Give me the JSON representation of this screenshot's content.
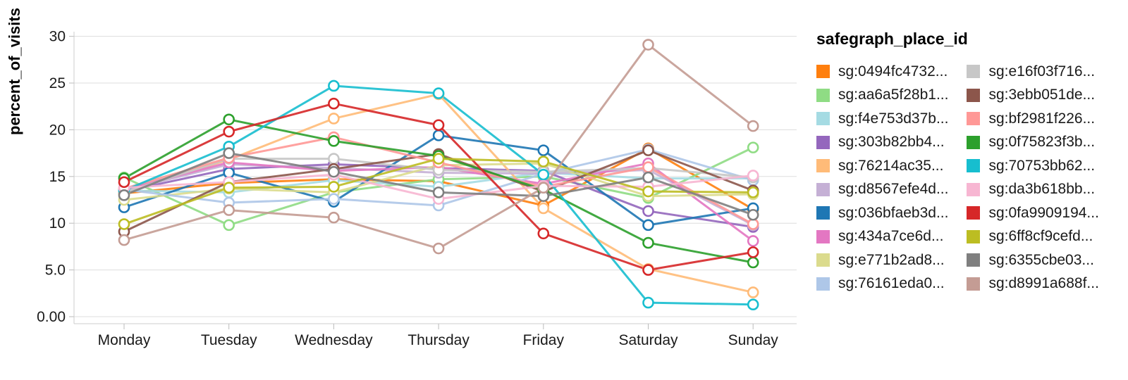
{
  "background_color": "#ffffff",
  "chart_data": {
    "type": "line",
    "title": "",
    "xlabel": "",
    "ylabel": "percent_of_visits",
    "legend_title": "safegraph_place_id",
    "grid": true,
    "legend_position": "right",
    "ylim": [
      0,
      30
    ],
    "y_tick_labels": [
      "0.00",
      "5.0",
      "10",
      "15",
      "20",
      "25",
      "30"
    ],
    "y_tick_values": [
      0,
      5,
      10,
      15,
      20,
      25,
      30
    ],
    "categories": [
      "Monday",
      "Tuesday",
      "Wednesday",
      "Thursday",
      "Friday",
      "Saturday",
      "Sunday"
    ],
    "marker": "open-circle",
    "series": [
      {
        "name": "sg:0494fc4732...",
        "color": "#ff7f0e",
        "values": [
          13.2,
          14.3,
          14.7,
          14.5,
          11.9,
          18.0,
          11.5
        ]
      },
      {
        "name": "sg:aa6a5f28b1...",
        "color": "#8fdc84",
        "values": [
          14.9,
          9.8,
          13.3,
          14.7,
          15.0,
          12.7,
          18.1
        ]
      },
      {
        "name": "sg:f4e753d37b...",
        "color": "#a5dbe3",
        "values": [
          13.5,
          13.3,
          14.6,
          13.9,
          15.4,
          14.8,
          14.8
        ]
      },
      {
        "name": "sg:303b82bb4...",
        "color": "#9467bd",
        "values": [
          13.4,
          15.8,
          16.3,
          15.9,
          15.6,
          11.3,
          9.6
        ]
      },
      {
        "name": "sg:76214ac35...",
        "color": "#ffbb78",
        "values": [
          13.4,
          16.8,
          21.2,
          23.8,
          11.6,
          5.1,
          2.6
        ]
      },
      {
        "name": "sg:d8567efe4d...",
        "color": "#c5b0d5",
        "values": [
          13.5,
          16.3,
          15.9,
          15.4,
          15.3,
          15.7,
          9.8
        ]
      },
      {
        "name": "sg:036bfaeb3d...",
        "color": "#1f77b4",
        "values": [
          11.7,
          15.4,
          12.3,
          19.4,
          17.8,
          9.8,
          11.6
        ]
      },
      {
        "name": "sg:434a7ce6d...",
        "color": "#e377c2",
        "values": [
          13.6,
          16.5,
          15.6,
          16.0,
          14.2,
          16.4,
          8.1
        ]
      },
      {
        "name": "sg:e771b2ad8...",
        "color": "#dbdb8d",
        "values": [
          12.5,
          13.7,
          13.3,
          16.2,
          16.4,
          12.9,
          13.1
        ]
      },
      {
        "name": "sg:76161eda0...",
        "color": "#aec7e8",
        "values": [
          13.6,
          12.2,
          12.6,
          11.9,
          15.3,
          17.9,
          14.6
        ]
      },
      {
        "name": "sg:e16f03f716...",
        "color": "#c7c7c7",
        "values": [
          13.3,
          16.9,
          16.9,
          15.7,
          15.5,
          15.9,
          14.9
        ]
      },
      {
        "name": "sg:3ebb051de...",
        "color": "#8c564b",
        "values": [
          9.1,
          14.4,
          15.8,
          17.4,
          13.4,
          17.8,
          13.5
        ]
      },
      {
        "name": "sg:bf2981f226...",
        "color": "#ff9896",
        "values": [
          13.7,
          17.0,
          19.2,
          16.5,
          13.9,
          16.0,
          9.9
        ]
      },
      {
        "name": "sg:0f75823f3b...",
        "color": "#2ca02c",
        "values": [
          14.8,
          21.1,
          18.8,
          17.2,
          13.6,
          7.9,
          5.8
        ]
      },
      {
        "name": "sg:70753bb62...",
        "color": "#17becf",
        "values": [
          13.5,
          18.2,
          24.7,
          23.9,
          15.2,
          1.5,
          1.3
        ]
      },
      {
        "name": "sg:da3b618bb...",
        "color": "#f7b6d2",
        "values": [
          13.8,
          14.4,
          15.2,
          12.6,
          14.0,
          13.9,
          15.1
        ]
      },
      {
        "name": "sg:0fa9909194...",
        "color": "#d62728",
        "values": [
          14.4,
          19.8,
          22.8,
          20.5,
          8.9,
          5.0,
          6.9
        ]
      },
      {
        "name": "sg:6ff8cf9cefd...",
        "color": "#bcbd22",
        "values": [
          9.9,
          13.8,
          13.9,
          16.9,
          16.6,
          13.4,
          13.3
        ]
      },
      {
        "name": "sg:6355cbe03...",
        "color": "#7f7f7f",
        "values": [
          13.0,
          17.5,
          15.5,
          13.3,
          12.9,
          14.9,
          10.9
        ]
      },
      {
        "name": "sg:d8991a688f...",
        "color": "#c49c94",
        "values": [
          8.2,
          11.4,
          10.6,
          7.3,
          13.8,
          29.1,
          20.4
        ]
      }
    ],
    "style": {
      "grid_color": "#dddddd",
      "axis_color": "#cccccc",
      "tick_color": "#bbbbbb",
      "label_color": "#1a1a1a",
      "line_width": 3,
      "marker_radius": 7
    }
  }
}
